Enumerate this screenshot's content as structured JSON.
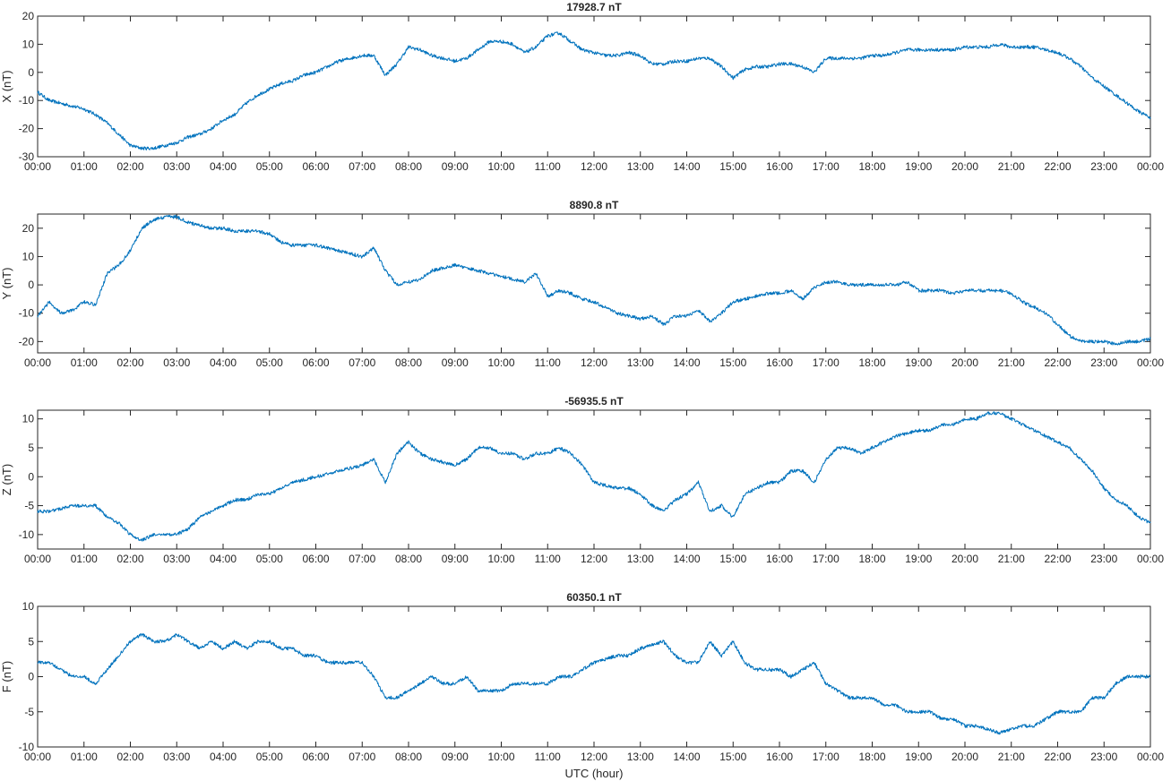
{
  "chart_data": [
    {
      "type": "line",
      "title": "17928.7 nT",
      "xlabel": "",
      "ylabel": "X (nT)",
      "xlim": [
        0,
        24
      ],
      "ylim": [
        -30,
        20
      ],
      "yticks": [
        -30,
        -20,
        -10,
        0,
        10,
        20
      ],
      "xticks": [
        "00:00",
        "01:00",
        "02:00",
        "03:00",
        "04:00",
        "05:00",
        "06:00",
        "07:00",
        "08:00",
        "09:00",
        "10:00",
        "11:00",
        "12:00",
        "13:00",
        "14:00",
        "15:00",
        "16:00",
        "17:00",
        "18:00",
        "19:00",
        "20:00",
        "21:00",
        "22:00",
        "23:00",
        "00:00"
      ],
      "color": "#0072bd",
      "grid": false,
      "series": [
        {
          "x": [
            0,
            0.25,
            0.5,
            0.75,
            1,
            1.25,
            1.5,
            1.75,
            2,
            2.25,
            2.5,
            2.75,
            3,
            3.25,
            3.5,
            3.75,
            4,
            4.25,
            4.5,
            4.75,
            5,
            5.25,
            5.5,
            5.75,
            6,
            6.25,
            6.5,
            6.75,
            7,
            7.25,
            7.5,
            7.75,
            8,
            8.25,
            8.5,
            8.75,
            9,
            9.25,
            9.5,
            9.75,
            10,
            10.25,
            10.5,
            10.75,
            11,
            11.25,
            11.5,
            11.75,
            12,
            12.25,
            12.5,
            12.75,
            13,
            13.25,
            13.5,
            13.75,
            14,
            14.25,
            14.5,
            14.75,
            15,
            15.25,
            15.5,
            15.75,
            16,
            16.25,
            16.5,
            16.75,
            17,
            17.25,
            17.5,
            17.75,
            18,
            18.25,
            18.5,
            18.75,
            19,
            19.25,
            19.5,
            19.75,
            20,
            20.25,
            20.5,
            20.75,
            21,
            21.25,
            21.5,
            21.75,
            22,
            22.25,
            22.5,
            22.75,
            23,
            23.25,
            23.5,
            23.75,
            24
          ],
          "y": [
            -7,
            -10,
            -11,
            -12,
            -13,
            -15,
            -18,
            -22,
            -26,
            -27,
            -27,
            -26,
            -25,
            -23,
            -22,
            -20,
            -17,
            -15,
            -11,
            -8,
            -6,
            -4,
            -3,
            -1,
            0,
            2,
            4,
            5,
            6,
            6,
            -1,
            3,
            9,
            8,
            6,
            5,
            4,
            5,
            8,
            11,
            11,
            10,
            7,
            9,
            13,
            14,
            11,
            8,
            7,
            6,
            6,
            7,
            6,
            3,
            3,
            4,
            4,
            5,
            5,
            2,
            -2,
            1,
            2,
            2,
            3,
            3,
            2,
            0,
            5,
            5,
            5,
            5,
            6,
            6,
            7,
            8,
            8,
            8,
            8,
            8,
            9,
            9,
            9,
            10,
            9,
            9,
            9,
            8,
            7,
            5,
            2,
            -2,
            -5,
            -8,
            -11,
            -14,
            -16
          ]
        }
      ]
    },
    {
      "type": "line",
      "title": "8890.8 nT",
      "xlabel": "",
      "ylabel": "Y (nT)",
      "xlim": [
        0,
        24
      ],
      "ylim": [
        -24,
        25
      ],
      "yticks": [
        -20,
        -10,
        0,
        10,
        20
      ],
      "xticks": [
        "00:00",
        "01:00",
        "02:00",
        "03:00",
        "04:00",
        "05:00",
        "06:00",
        "07:00",
        "08:00",
        "09:00",
        "10:00",
        "11:00",
        "12:00",
        "13:00",
        "14:00",
        "15:00",
        "16:00",
        "17:00",
        "18:00",
        "19:00",
        "20:00",
        "21:00",
        "22:00",
        "23:00",
        "00:00"
      ],
      "color": "#0072bd",
      "grid": false,
      "series": [
        {
          "x": [
            0,
            0.25,
            0.5,
            0.75,
            1,
            1.25,
            1.5,
            1.75,
            2,
            2.25,
            2.5,
            2.75,
            3,
            3.25,
            3.5,
            3.75,
            4,
            4.25,
            4.5,
            4.75,
            5,
            5.25,
            5.5,
            5.75,
            6,
            6.25,
            6.5,
            6.75,
            7,
            7.25,
            7.5,
            7.75,
            8,
            8.25,
            8.5,
            8.75,
            9,
            9.25,
            9.5,
            9.75,
            10,
            10.25,
            10.5,
            10.75,
            11,
            11.25,
            11.5,
            11.75,
            12,
            12.25,
            12.5,
            12.75,
            13,
            13.25,
            13.5,
            13.75,
            14,
            14.25,
            14.5,
            14.75,
            15,
            15.25,
            15.5,
            15.75,
            16,
            16.25,
            16.5,
            16.75,
            17,
            17.25,
            17.5,
            17.75,
            18,
            18.25,
            18.5,
            18.75,
            19,
            19.25,
            19.5,
            19.75,
            20,
            20.25,
            20.5,
            20.75,
            21,
            21.25,
            21.5,
            21.75,
            22,
            22.25,
            22.5,
            22.75,
            23,
            23.25,
            23.5,
            23.75,
            24
          ],
          "y": [
            -11,
            -6,
            -10,
            -9,
            -6,
            -7,
            4,
            7,
            12,
            20,
            23,
            24,
            24,
            22,
            21,
            20,
            20,
            19,
            19,
            19,
            18,
            15,
            14,
            14,
            14,
            13,
            12,
            11,
            10,
            13,
            5,
            0,
            1,
            2,
            5,
            6,
            7,
            6,
            5,
            4,
            3,
            2,
            1,
            4,
            -4,
            -2,
            -3,
            -5,
            -6,
            -8,
            -10,
            -11,
            -12,
            -11,
            -14,
            -11,
            -11,
            -9,
            -13,
            -10,
            -6,
            -5,
            -4,
            -3,
            -3,
            -2,
            -5,
            -1,
            1,
            1,
            0,
            0,
            0,
            0,
            0,
            1,
            -2,
            -2,
            -2,
            -3,
            -2,
            -2,
            -2,
            -2,
            -3,
            -6,
            -8,
            -10,
            -14,
            -18,
            -20,
            -20,
            -20,
            -21,
            -20,
            -20,
            -19
          ]
        }
      ]
    },
    {
      "type": "line",
      "title": "-56935.5 nT",
      "xlabel": "",
      "ylabel": "Z (nT)",
      "xlim": [
        0,
        24
      ],
      "ylim": [
        -12.5,
        11.5
      ],
      "yticks": [
        -10,
        -5,
        0,
        5,
        10
      ],
      "xticks": [
        "00:00",
        "01:00",
        "02:00",
        "03:00",
        "04:00",
        "05:00",
        "06:00",
        "07:00",
        "08:00",
        "09:00",
        "10:00",
        "11:00",
        "12:00",
        "13:00",
        "14:00",
        "15:00",
        "16:00",
        "17:00",
        "18:00",
        "19:00",
        "20:00",
        "21:00",
        "22:00",
        "23:00",
        "00:00"
      ],
      "color": "#0072bd",
      "grid": false,
      "series": [
        {
          "x": [
            0,
            0.25,
            0.5,
            0.75,
            1,
            1.25,
            1.5,
            1.75,
            2,
            2.25,
            2.5,
            2.75,
            3,
            3.25,
            3.5,
            3.75,
            4,
            4.25,
            4.5,
            4.75,
            5,
            5.25,
            5.5,
            5.75,
            6,
            6.25,
            6.5,
            6.75,
            7,
            7.25,
            7.5,
            7.75,
            8,
            8.25,
            8.5,
            8.75,
            9,
            9.25,
            9.5,
            9.75,
            10,
            10.25,
            10.5,
            10.75,
            11,
            11.25,
            11.5,
            11.75,
            12,
            12.25,
            12.5,
            12.75,
            13,
            13.25,
            13.5,
            13.75,
            14,
            14.25,
            14.5,
            14.75,
            15,
            15.25,
            15.5,
            15.75,
            16,
            16.25,
            16.5,
            16.75,
            17,
            17.25,
            17.5,
            17.75,
            18,
            18.25,
            18.5,
            18.75,
            19,
            19.25,
            19.5,
            19.75,
            20,
            20.25,
            20.5,
            20.75,
            21,
            21.25,
            21.5,
            21.75,
            22,
            22.25,
            22.5,
            22.75,
            23,
            23.25,
            23.5,
            23.75,
            24
          ],
          "y": [
            -6,
            -6,
            -5.5,
            -5,
            -5,
            -5,
            -7,
            -8,
            -10,
            -11,
            -10,
            -10,
            -10,
            -9,
            -7,
            -6,
            -5,
            -4,
            -4,
            -3,
            -3,
            -2,
            -1,
            -0.5,
            0,
            0.5,
            1,
            1.5,
            2,
            3,
            -1,
            4,
            6,
            4,
            3,
            2.5,
            2,
            3,
            5,
            5,
            4,
            4,
            3,
            4,
            4,
            5,
            4,
            2,
            -1,
            -1.5,
            -2,
            -2,
            -3,
            -5,
            -6,
            -4,
            -3,
            -1,
            -6,
            -5,
            -7,
            -3,
            -2,
            -1,
            -1,
            1,
            1,
            -1,
            3,
            5,
            5,
            4,
            5,
            6,
            7,
            7.5,
            8,
            8,
            9,
            9,
            10,
            10,
            11,
            11,
            10,
            9,
            8,
            7,
            6,
            5,
            3,
            1,
            -2,
            -4,
            -5,
            -7,
            -8
          ]
        }
      ]
    },
    {
      "type": "line",
      "title": "60350.1 nT",
      "xlabel": "UTC (hour)",
      "ylabel": "F (nT)",
      "xlim": [
        0,
        24
      ],
      "ylim": [
        -10,
        10
      ],
      "yticks": [
        -10,
        -5,
        0,
        5,
        10
      ],
      "xticks": [
        "00:00",
        "01:00",
        "02:00",
        "03:00",
        "04:00",
        "05:00",
        "06:00",
        "07:00",
        "08:00",
        "09:00",
        "10:00",
        "11:00",
        "12:00",
        "13:00",
        "14:00",
        "15:00",
        "16:00",
        "17:00",
        "18:00",
        "19:00",
        "20:00",
        "21:00",
        "22:00",
        "23:00",
        "00:00"
      ],
      "color": "#0072bd",
      "grid": false,
      "series": [
        {
          "x": [
            0,
            0.25,
            0.5,
            0.75,
            1,
            1.25,
            1.5,
            1.75,
            2,
            2.25,
            2.5,
            2.75,
            3,
            3.25,
            3.5,
            3.75,
            4,
            4.25,
            4.5,
            4.75,
            5,
            5.25,
            5.5,
            5.75,
            6,
            6.25,
            6.5,
            6.75,
            7,
            7.25,
            7.5,
            7.75,
            8,
            8.25,
            8.5,
            8.75,
            9,
            9.25,
            9.5,
            9.75,
            10,
            10.25,
            10.5,
            10.75,
            11,
            11.25,
            11.5,
            11.75,
            12,
            12.25,
            12.5,
            12.75,
            13,
            13.25,
            13.5,
            13.75,
            14,
            14.25,
            14.5,
            14.75,
            15,
            15.25,
            15.5,
            15.75,
            16,
            16.25,
            16.5,
            16.75,
            17,
            17.25,
            17.5,
            17.75,
            18,
            18.25,
            18.5,
            18.75,
            19,
            19.25,
            19.5,
            19.75,
            20,
            20.25,
            20.5,
            20.75,
            21,
            21.25,
            21.5,
            21.75,
            22,
            22.25,
            22.5,
            22.75,
            23,
            23.25,
            23.5,
            23.75,
            24
          ],
          "y": [
            2,
            2,
            1,
            0,
            0,
            -1,
            1,
            3,
            5,
            6,
            5,
            5,
            6,
            5,
            4,
            5,
            4,
            5,
            4,
            5,
            5,
            4,
            4,
            3,
            3,
            2,
            2,
            2,
            2,
            0,
            -3,
            -3,
            -2,
            -1,
            0,
            -1,
            -1,
            0,
            -2,
            -2,
            -2,
            -1,
            -1,
            -1,
            -1,
            0,
            0,
            1,
            2,
            2.5,
            3,
            3,
            4,
            4.5,
            5,
            3,
            2,
            2,
            5,
            3,
            5,
            2,
            1,
            1,
            1,
            0,
            1,
            2,
            -1,
            -2,
            -3,
            -3,
            -3,
            -4,
            -4,
            -5,
            -5,
            -5,
            -6,
            -6,
            -7,
            -7,
            -7.5,
            -8,
            -7.5,
            -7,
            -7,
            -6,
            -5,
            -5,
            -5,
            -3,
            -3,
            -1,
            0,
            0,
            0
          ]
        }
      ]
    }
  ]
}
